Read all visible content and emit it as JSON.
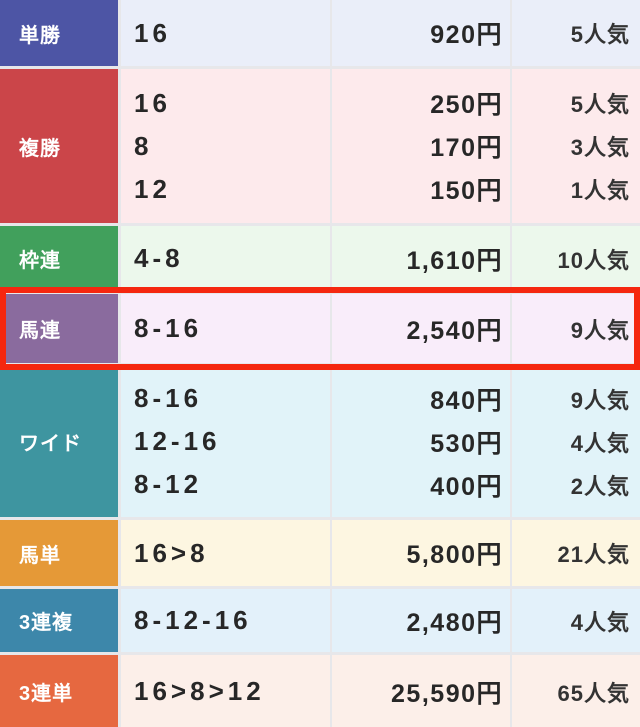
{
  "table": {
    "columns": [
      "bet-type",
      "combination",
      "payout",
      "popularity"
    ],
    "grid_gap_color": "#e7e7ea",
    "highlight_color": "#f5270f",
    "rows": [
      {
        "type": "単勝",
        "label_color": "#4d55a5",
        "cell_color": "#eaeef9",
        "highlighted": false,
        "entries": [
          {
            "combination": "16",
            "payout": "920円",
            "popularity": "5人気"
          }
        ]
      },
      {
        "type": "複勝",
        "label_color": "#cb4549",
        "cell_color": "#fdeaec",
        "highlighted": false,
        "entries": [
          {
            "combination": "16",
            "payout": "250円",
            "popularity": "5人気"
          },
          {
            "combination": "8",
            "payout": "170円",
            "popularity": "3人気"
          },
          {
            "combination": "12",
            "payout": "150円",
            "popularity": "1人気"
          }
        ]
      },
      {
        "type": "枠連",
        "label_color": "#41a05c",
        "cell_color": "#ecf8ec",
        "highlighted": false,
        "entries": [
          {
            "combination": "4-8",
            "payout": "1,610円",
            "popularity": "10人気"
          }
        ]
      },
      {
        "type": "馬連",
        "label_color": "#8a6b9e",
        "cell_color": "#f9edfa",
        "highlighted": true,
        "entries": [
          {
            "combination": "8-16",
            "payout": "2,540円",
            "popularity": "9人気"
          }
        ]
      },
      {
        "type": "ワイド",
        "label_color": "#3e95a0",
        "cell_color": "#e1f3f9",
        "highlighted": false,
        "entries": [
          {
            "combination": "8-16",
            "payout": "840円",
            "popularity": "9人気"
          },
          {
            "combination": "12-16",
            "payout": "530円",
            "popularity": "4人気"
          },
          {
            "combination": "8-12",
            "payout": "400円",
            "popularity": "2人気"
          }
        ]
      },
      {
        "type": "馬単",
        "label_color": "#e59937",
        "cell_color": "#fdf6e1",
        "highlighted": false,
        "entries": [
          {
            "combination": "16>8",
            "payout": "5,800円",
            "popularity": "21人気"
          }
        ]
      },
      {
        "type": "3連複",
        "label_color": "#3d87aa",
        "cell_color": "#e3f1fa",
        "highlighted": false,
        "entries": [
          {
            "combination": "8-12-16",
            "payout": "2,480円",
            "popularity": "4人気"
          }
        ]
      },
      {
        "type": "3連単",
        "label_color": "#e66840",
        "cell_color": "#fcefe9",
        "highlighted": false,
        "entries": [
          {
            "combination": "16>8>12",
            "payout": "25,590円",
            "popularity": "65人気"
          }
        ]
      }
    ]
  }
}
